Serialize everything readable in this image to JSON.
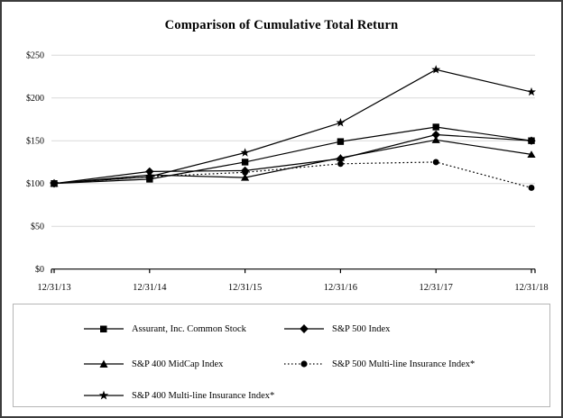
{
  "chart_data": {
    "type": "line",
    "title": "Comparison of Cumulative Total Return",
    "x_labels": [
      "12/31/13",
      "12/31/14",
      "12/31/15",
      "12/31/16",
      "12/31/17",
      "12/31/18"
    ],
    "y_tick_labels": [
      "$0",
      "$50",
      "$100",
      "$150",
      "$200",
      "$250"
    ],
    "y_tick_values": [
      0,
      50,
      100,
      150,
      200,
      250
    ],
    "ylim": [
      0,
      250
    ],
    "grid": "horizontal",
    "legend_position": "boxed-bottom",
    "series": [
      {
        "name": "Assurant, Inc. Common Stock",
        "marker": "square",
        "line": "solid",
        "values": [
          100,
          105,
          125,
          149,
          166,
          150
        ]
      },
      {
        "name": "S&P 500 Index",
        "marker": "diamond",
        "line": "solid",
        "values": [
          100,
          114,
          115,
          129,
          157,
          150
        ]
      },
      {
        "name": "S&P 400 MidCap Index",
        "marker": "triangle",
        "line": "solid",
        "values": [
          100,
          110,
          107,
          130,
          151,
          134
        ]
      },
      {
        "name": "S&P 500 Multi-line Insurance Index*",
        "marker": "circle",
        "line": "dotted",
        "values": [
          100,
          108,
          113,
          123,
          125,
          95
        ]
      },
      {
        "name": "S&P 400 Multi-line Insurance Index*",
        "marker": "star",
        "line": "solid",
        "values": [
          100,
          108,
          136,
          171,
          233,
          207
        ]
      }
    ],
    "colors": {
      "line": "#000000",
      "grid": "#d9d9d9",
      "text": "#000000",
      "legend_border": "#b5b5b5",
      "frame_border": "#3c3c3c"
    }
  }
}
